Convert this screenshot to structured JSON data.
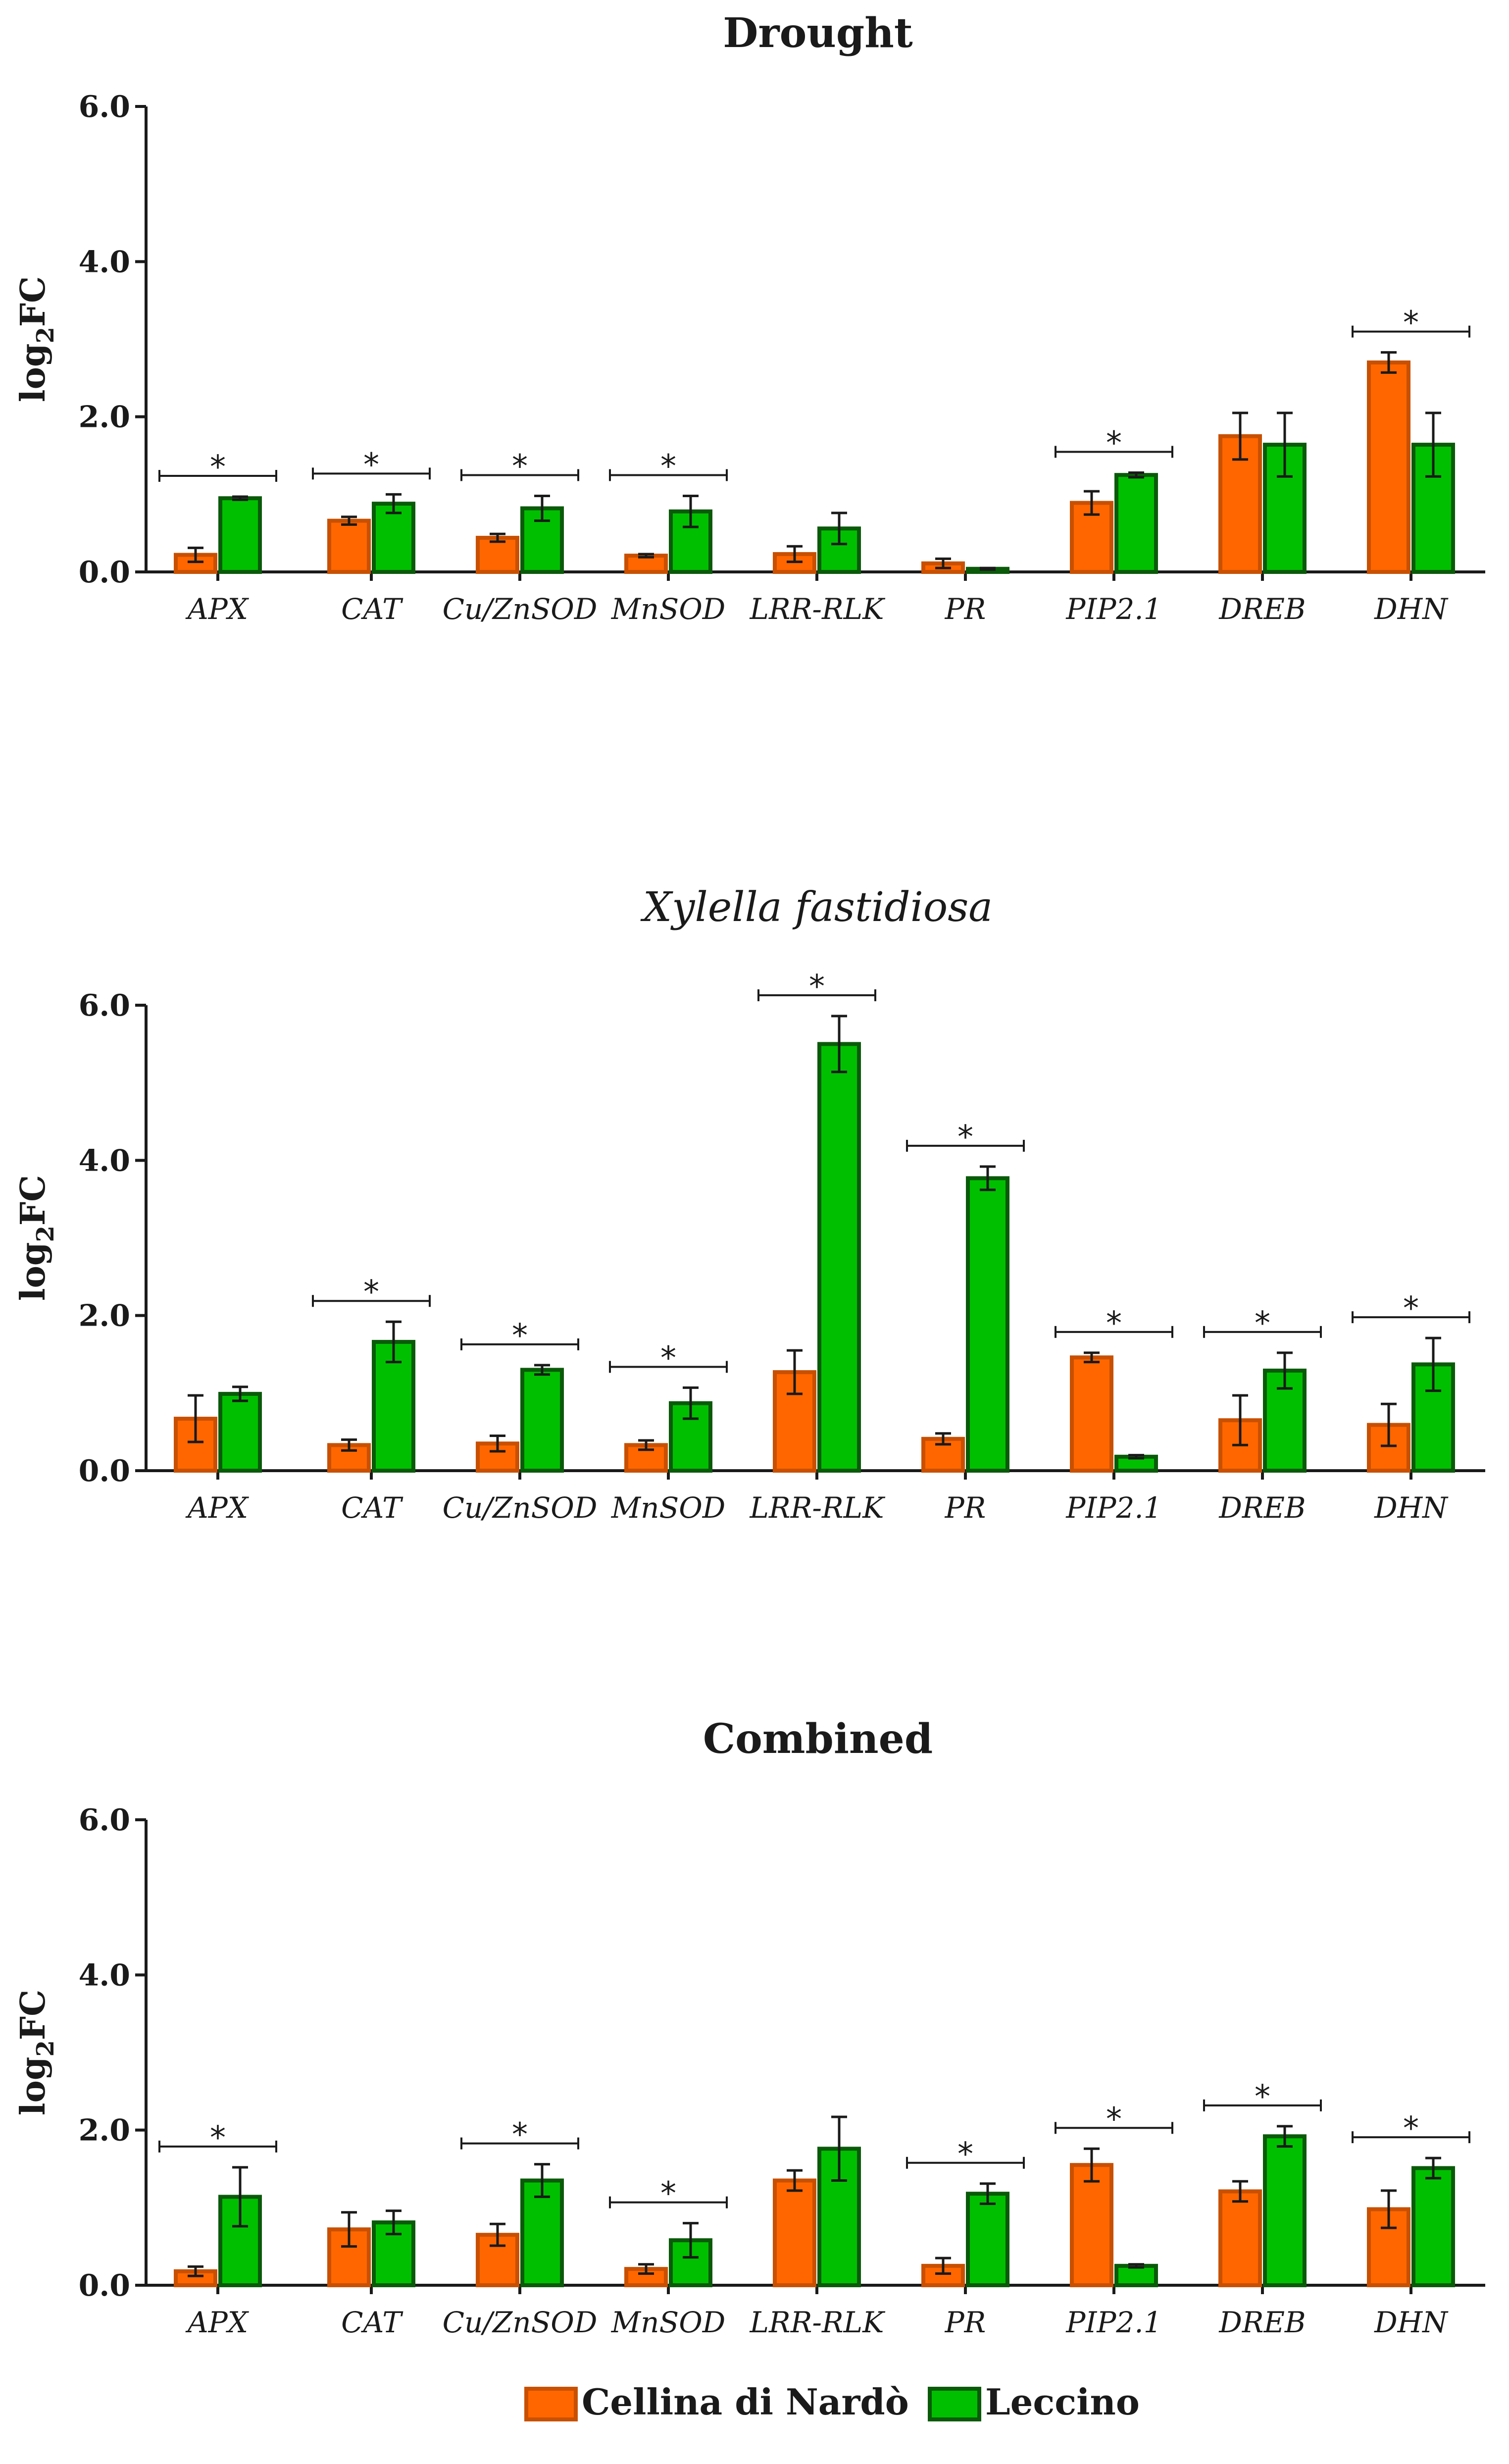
{
  "colors": {
    "cellina_fill": "#ff6600",
    "cellina_edge": "#c85000",
    "leccino_fill": "#00bf00",
    "leccino_edge": "#0a5a0a"
  },
  "legend": {
    "items": [
      {
        "label": "Cellina di Nardò",
        "color": "#ff6600"
      },
      {
        "label": "Leccino",
        "color": "#00bf00"
      }
    ]
  },
  "chart_data": [
    {
      "type": "bar",
      "title": "Drought",
      "title_italic": false,
      "ylabel": "log2FC",
      "ylim": [
        0,
        6
      ],
      "yticks": [
        "0.0",
        "2.0",
        "4.0",
        "6.0"
      ],
      "categories": [
        "APX",
        "CAT",
        "Cu/ZnSOD",
        "MnSOD",
        "LRR-RLK",
        "PR",
        "PIP2.1",
        "DREB",
        "DHN"
      ],
      "series": [
        {
          "name": "Cellina di Nardò",
          "values": [
            0.22,
            0.66,
            0.44,
            0.21,
            0.23,
            0.11,
            0.89,
            1.75,
            2.7
          ],
          "errors": [
            0.09,
            0.05,
            0.05,
            0.02,
            0.1,
            0.06,
            0.15,
            0.3,
            0.13
          ]
        },
        {
          "name": "Leccino",
          "values": [
            0.95,
            0.88,
            0.82,
            0.78,
            0.56,
            0.04,
            1.25,
            1.64,
            1.64
          ],
          "errors": [
            0.02,
            0.12,
            0.16,
            0.2,
            0.2,
            0.01,
            0.03,
            0.41,
            0.41
          ]
        }
      ],
      "significance": [
        true,
        true,
        true,
        true,
        false,
        false,
        true,
        false,
        true
      ],
      "significance_marker": "*"
    },
    {
      "type": "bar",
      "title": "Xylella fastidiosa",
      "title_italic": true,
      "ylabel": "log2FC",
      "ylim": [
        0,
        6
      ],
      "yticks": [
        "0.0",
        "2.0",
        "4.0",
        "6.0"
      ],
      "categories": [
        "APX",
        "CAT",
        "Cu/ZnSOD",
        "MnSOD",
        "LRR-RLK",
        "PR",
        "PIP2.1",
        "DREB",
        "DHN"
      ],
      "series": [
        {
          "name": "Cellina di Nardò",
          "values": [
            0.67,
            0.33,
            0.35,
            0.33,
            1.27,
            0.41,
            1.46,
            0.65,
            0.59
          ],
          "errors": [
            0.3,
            0.07,
            0.1,
            0.06,
            0.28,
            0.07,
            0.06,
            0.32,
            0.27
          ]
        },
        {
          "name": "Leccino",
          "values": [
            0.99,
            1.66,
            1.3,
            0.87,
            5.5,
            3.77,
            0.18,
            1.29,
            1.37
          ],
          "errors": [
            0.09,
            0.26,
            0.06,
            0.2,
            0.36,
            0.15,
            0.02,
            0.23,
            0.34
          ]
        }
      ],
      "significance": [
        false,
        true,
        true,
        true,
        true,
        true,
        true,
        true,
        true
      ],
      "significance_marker": "*"
    },
    {
      "type": "bar",
      "title": "Combined",
      "title_italic": false,
      "ylabel": "log2FC",
      "ylim": [
        0,
        6
      ],
      "yticks": [
        "0.0",
        "2.0",
        "4.0",
        "6.0"
      ],
      "categories": [
        "APX",
        "CAT",
        "Cu/ZnSOD",
        "MnSOD",
        "LRR-RLK",
        "PR",
        "PIP2.1",
        "DREB",
        "DHN"
      ],
      "series": [
        {
          "name": "Cellina di Nardò",
          "values": [
            0.18,
            0.72,
            0.65,
            0.21,
            1.35,
            0.25,
            1.55,
            1.21,
            0.98
          ],
          "errors": [
            0.06,
            0.22,
            0.14,
            0.06,
            0.13,
            0.1,
            0.21,
            0.13,
            0.24
          ]
        },
        {
          "name": "Leccino",
          "values": [
            1.14,
            0.81,
            1.35,
            0.58,
            1.76,
            1.18,
            0.25,
            1.92,
            1.51
          ],
          "errors": [
            0.38,
            0.15,
            0.21,
            0.22,
            0.41,
            0.13,
            0.02,
            0.13,
            0.13
          ]
        }
      ],
      "significance": [
        true,
        false,
        true,
        true,
        false,
        true,
        true,
        true,
        true
      ],
      "significance_marker": "*"
    }
  ]
}
